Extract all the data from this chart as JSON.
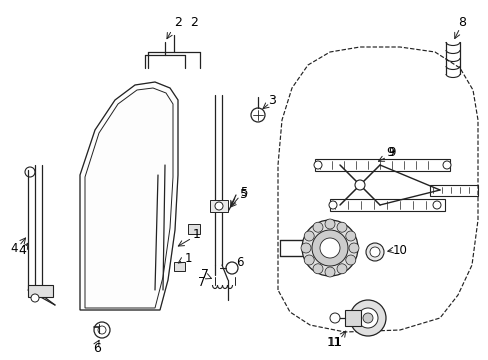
{
  "bg_color": "#ffffff",
  "line_color": "#222222",
  "label_color": "#000000",
  "lw": 0.9,
  "figsize": [
    4.89,
    3.6
  ],
  "dpi": 100
}
